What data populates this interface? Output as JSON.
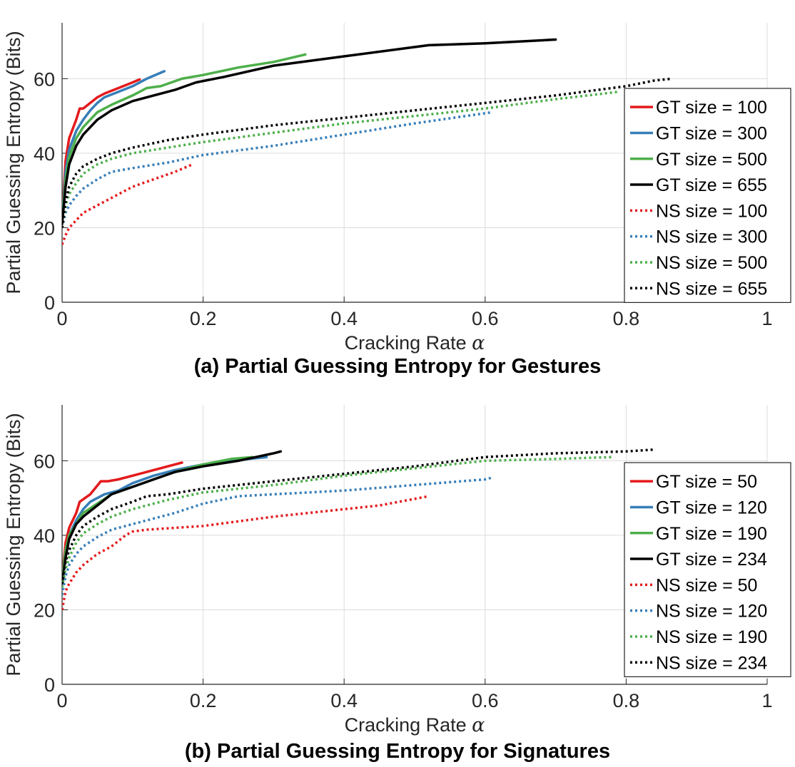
{
  "chart_data": [
    {
      "type": "line",
      "caption": "(a) Partial Guessing Entropy for Gestures",
      "xlabel": "Cracking Rate",
      "xlabel_symbol": "α",
      "ylabel": "Partial Guessing Entropy (Bits)",
      "xlim": [
        0,
        1
      ],
      "ylim": [
        0,
        75
      ],
      "xticks": [
        "0",
        "0.2",
        "0.4",
        "0.6",
        "0.8",
        "1"
      ],
      "xtick_values": [
        0,
        0.2,
        0.4,
        0.6,
        0.8,
        1
      ],
      "yticks": [
        "0",
        "20",
        "40",
        "60"
      ],
      "ytick_values": [
        0,
        20,
        40,
        60
      ],
      "grid": true,
      "legend_position": "right",
      "series": [
        {
          "name": "GT size = 100",
          "color": "#e41a1c",
          "style": "solid",
          "x": [
            0,
            0.005,
            0.01,
            0.02,
            0.025,
            0.03,
            0.04,
            0.05,
            0.06,
            0.08,
            0.1,
            0.11
          ],
          "y": [
            22,
            38,
            44,
            49,
            52,
            52,
            53.5,
            55,
            56,
            57.5,
            59,
            59.8
          ]
        },
        {
          "name": "GT size = 300",
          "color": "#377eb8",
          "style": "solid",
          "x": [
            0,
            0.005,
            0.01,
            0.02,
            0.03,
            0.04,
            0.05,
            0.06,
            0.08,
            0.1,
            0.12,
            0.145
          ],
          "y": [
            22,
            35,
            41,
            46,
            49,
            51.5,
            53.5,
            55,
            56.5,
            58,
            60,
            62
          ]
        },
        {
          "name": "GT size = 500",
          "color": "#4daf4a",
          "style": "solid",
          "x": [
            0,
            0.005,
            0.01,
            0.02,
            0.03,
            0.05,
            0.07,
            0.1,
            0.12,
            0.14,
            0.17,
            0.2,
            0.25,
            0.3,
            0.345
          ],
          "y": [
            22,
            33,
            39,
            44,
            47,
            51,
            53,
            55.5,
            57.5,
            58,
            60,
            61,
            63,
            64.5,
            66.5
          ]
        },
        {
          "name": "GT size = 655",
          "color": "#000000",
          "style": "solid",
          "x": [
            0,
            0.005,
            0.01,
            0.02,
            0.03,
            0.05,
            0.07,
            0.1,
            0.13,
            0.16,
            0.19,
            0.23,
            0.3,
            0.4,
            0.52,
            0.6,
            0.7
          ],
          "y": [
            21,
            31,
            37,
            42,
            45,
            49,
            51.5,
            54,
            55.5,
            57,
            59,
            60.5,
            63.5,
            66,
            69,
            69.5,
            70.5
          ]
        },
        {
          "name": "NS size = 100",
          "color": "#e41a1c",
          "style": "dotted",
          "x": [
            0,
            0.005,
            0.01,
            0.02,
            0.03,
            0.05,
            0.07,
            0.1,
            0.13,
            0.16,
            0.185
          ],
          "y": [
            15.5,
            18,
            20,
            22,
            24,
            26,
            28,
            31,
            33,
            35,
            37
          ]
        },
        {
          "name": "NS size = 300",
          "color": "#377eb8",
          "style": "dotted",
          "x": [
            0,
            0.005,
            0.01,
            0.02,
            0.03,
            0.05,
            0.07,
            0.1,
            0.15,
            0.2,
            0.3,
            0.4,
            0.5,
            0.61
          ],
          "y": [
            20,
            24,
            26,
            28.5,
            30.5,
            33,
            35,
            36,
            37.5,
            39.5,
            42,
            45,
            48,
            51
          ]
        },
        {
          "name": "NS size = 500",
          "color": "#4daf4a",
          "style": "dotted",
          "x": [
            0,
            0.005,
            0.01,
            0.02,
            0.03,
            0.05,
            0.07,
            0.1,
            0.15,
            0.2,
            0.3,
            0.4,
            0.5,
            0.6,
            0.7,
            0.79
          ],
          "y": [
            20,
            26,
            29,
            32,
            34.5,
            37,
            38.5,
            40,
            41.5,
            43,
            45.5,
            48,
            50,
            52,
            54.5,
            56.5
          ]
        },
        {
          "name": "NS size = 655",
          "color": "#000000",
          "style": "dotted",
          "x": [
            0,
            0.005,
            0.01,
            0.02,
            0.03,
            0.05,
            0.07,
            0.1,
            0.15,
            0.2,
            0.3,
            0.4,
            0.5,
            0.6,
            0.7,
            0.8,
            0.84,
            0.865
          ],
          "y": [
            20,
            27,
            31,
            34.5,
            36.5,
            38.5,
            40,
            41.5,
            43.5,
            45,
            47.5,
            49.5,
            51.5,
            53.5,
            55.5,
            58,
            59.5,
            60
          ]
        }
      ]
    },
    {
      "type": "line",
      "caption": "(b) Partial Guessing Entropy for Signatures",
      "xlabel": "Cracking Rate",
      "xlabel_symbol": "α",
      "ylabel": "Partial Guessing Entropy (Bits)",
      "xlim": [
        0,
        1
      ],
      "ylim": [
        0,
        75
      ],
      "xticks": [
        "0",
        "0.2",
        "0.4",
        "0.6",
        "0.8",
        "1"
      ],
      "xtick_values": [
        0,
        0.2,
        0.4,
        0.6,
        0.8,
        1
      ],
      "yticks": [
        "0",
        "20",
        "40",
        "60"
      ],
      "ytick_values": [
        0,
        20,
        40,
        60
      ],
      "grid": true,
      "legend_position": "right",
      "series": [
        {
          "name": "GT size = 50",
          "color": "#e41a1c",
          "style": "solid",
          "x": [
            0,
            0.005,
            0.01,
            0.02,
            0.025,
            0.04,
            0.055,
            0.065,
            0.08,
            0.1,
            0.12,
            0.15,
            0.17
          ],
          "y": [
            28,
            38,
            42,
            46,
            49,
            51,
            54.5,
            54.5,
            55,
            56,
            57,
            58.5,
            59.5
          ]
        },
        {
          "name": "GT size = 120",
          "color": "#377eb8",
          "style": "solid",
          "x": [
            0,
            0.005,
            0.01,
            0.02,
            0.03,
            0.04,
            0.06,
            0.08,
            0.1,
            0.13,
            0.16,
            0.2,
            0.24,
            0.29
          ],
          "y": [
            28,
            36,
            40,
            44,
            47,
            49,
            51,
            52,
            54,
            56,
            57.5,
            59,
            60,
            61
          ]
        },
        {
          "name": "GT size = 190",
          "color": "#4daf4a",
          "style": "solid",
          "x": [
            0,
            0.005,
            0.01,
            0.02,
            0.03,
            0.05,
            0.07,
            0.1,
            0.13,
            0.16,
            0.2,
            0.24,
            0.27
          ],
          "y": [
            28,
            36,
            40,
            43,
            46,
            48.5,
            51,
            53,
            55,
            57,
            59,
            60.5,
            61
          ]
        },
        {
          "name": "GT size = 234",
          "color": "#000000",
          "style": "solid",
          "x": [
            0,
            0.005,
            0.01,
            0.02,
            0.03,
            0.05,
            0.07,
            0.1,
            0.13,
            0.16,
            0.2,
            0.25,
            0.3,
            0.31
          ],
          "y": [
            27,
            34,
            39,
            43,
            45,
            48,
            51,
            53,
            55,
            57,
            58.5,
            60,
            62,
            62.5
          ]
        },
        {
          "name": "NS size = 50",
          "color": "#e41a1c",
          "style": "dotted",
          "x": [
            0,
            0.005,
            0.01,
            0.02,
            0.03,
            0.05,
            0.07,
            0.09,
            0.1,
            0.12,
            0.2,
            0.3,
            0.4,
            0.45,
            0.52
          ],
          "y": [
            20,
            25,
            27,
            30,
            32,
            35,
            37,
            40,
            41,
            41.5,
            42.5,
            45,
            47,
            48,
            50.5
          ]
        },
        {
          "name": "NS size = 120",
          "color": "#377eb8",
          "style": "dotted",
          "x": [
            0,
            0.005,
            0.01,
            0.02,
            0.03,
            0.05,
            0.07,
            0.1,
            0.13,
            0.16,
            0.2,
            0.25,
            0.3,
            0.4,
            0.5,
            0.6,
            0.61
          ],
          "y": [
            24,
            29,
            32,
            35,
            37,
            39.5,
            41.5,
            43,
            44.5,
            46,
            48.5,
            50.5,
            51,
            52,
            53.5,
            55,
            55.5
          ]
        },
        {
          "name": "NS size = 190",
          "color": "#4daf4a",
          "style": "dotted",
          "x": [
            0,
            0.005,
            0.01,
            0.02,
            0.03,
            0.05,
            0.07,
            0.1,
            0.15,
            0.2,
            0.3,
            0.4,
            0.5,
            0.6,
            0.7,
            0.78
          ],
          "y": [
            26,
            31,
            34,
            38,
            40.5,
            43,
            45,
            47,
            49.5,
            51.5,
            53.5,
            56,
            58,
            60,
            60.5,
            61
          ]
        },
        {
          "name": "NS size = 234",
          "color": "#000000",
          "style": "dotted",
          "x": [
            0,
            0.005,
            0.01,
            0.02,
            0.03,
            0.05,
            0.07,
            0.1,
            0.12,
            0.15,
            0.2,
            0.3,
            0.4,
            0.5,
            0.6,
            0.7,
            0.8,
            0.84
          ],
          "y": [
            27,
            33,
            36,
            40,
            42.5,
            45,
            47,
            49,
            50.5,
            51,
            52.5,
            54.5,
            56.5,
            58.5,
            61,
            62,
            62.5,
            63
          ]
        }
      ]
    }
  ]
}
